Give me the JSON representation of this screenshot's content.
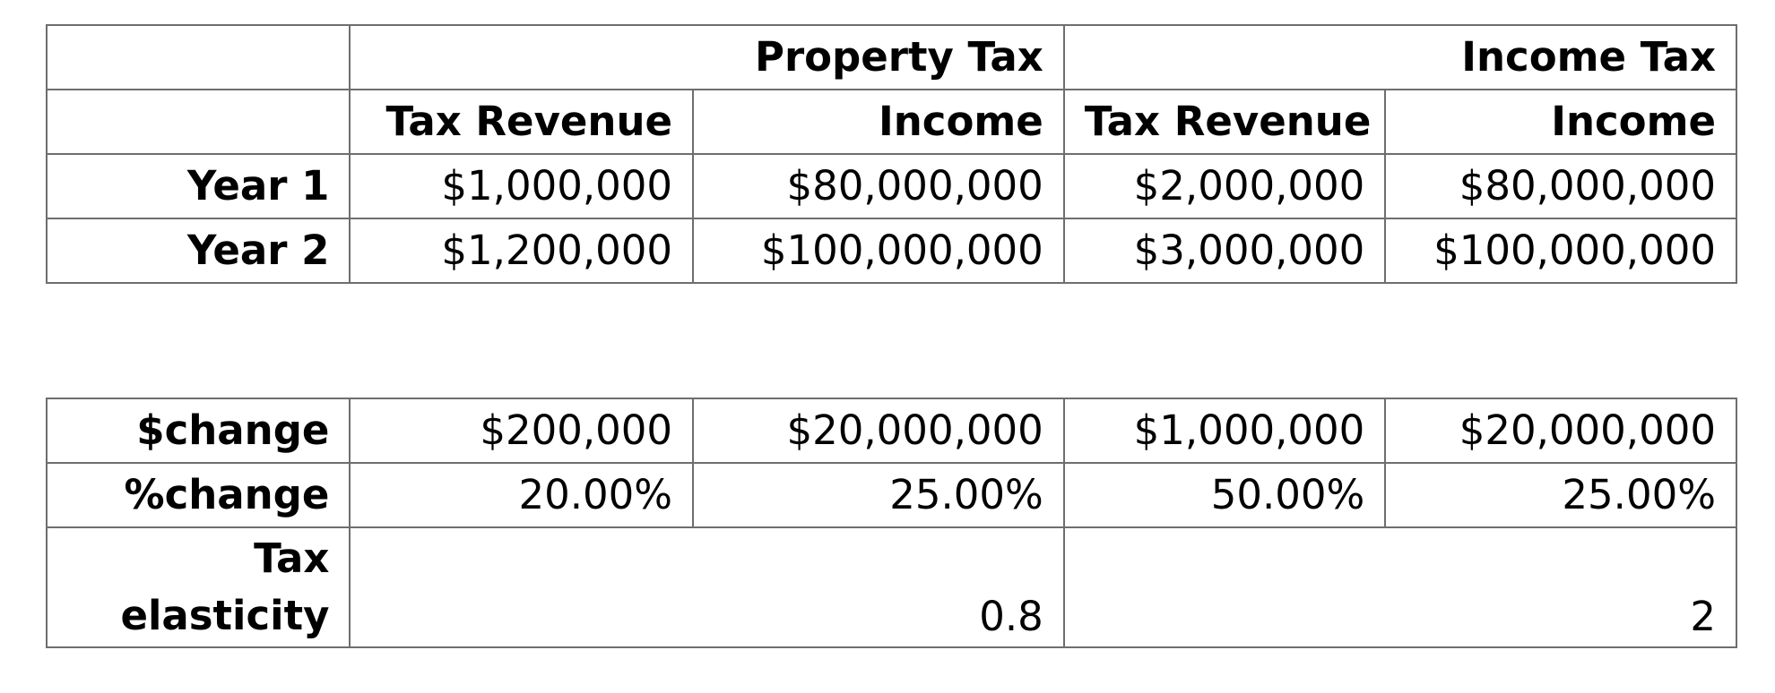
{
  "top_table": {
    "group_headers": {
      "property_tax": "Property Tax",
      "income_tax": "Income Tax"
    },
    "sub_headers": [
      "Tax Revenue",
      "Income",
      "Tax Revenue",
      "Income"
    ],
    "rows": [
      {
        "label": "Year 1",
        "values": [
          "$1,000,000",
          "$80,000,000",
          "$2,000,000",
          "$80,000,000"
        ]
      },
      {
        "label": "Year 2",
        "values": [
          "$1,200,000",
          "$100,000,000",
          "$3,000,000",
          "$100,000,000"
        ]
      }
    ]
  },
  "bottom_table": {
    "rows": [
      {
        "label": "$change",
        "values": [
          "$200,000",
          "$20,000,000",
          "$1,000,000",
          "$20,000,000"
        ]
      },
      {
        "label": "%change",
        "values": [
          "20.00%",
          "25.00%",
          "50.00%",
          "25.00%"
        ]
      }
    ],
    "elasticity": {
      "label": "Tax elasticity",
      "property_tax": "0.8",
      "income_tax": "2"
    }
  }
}
